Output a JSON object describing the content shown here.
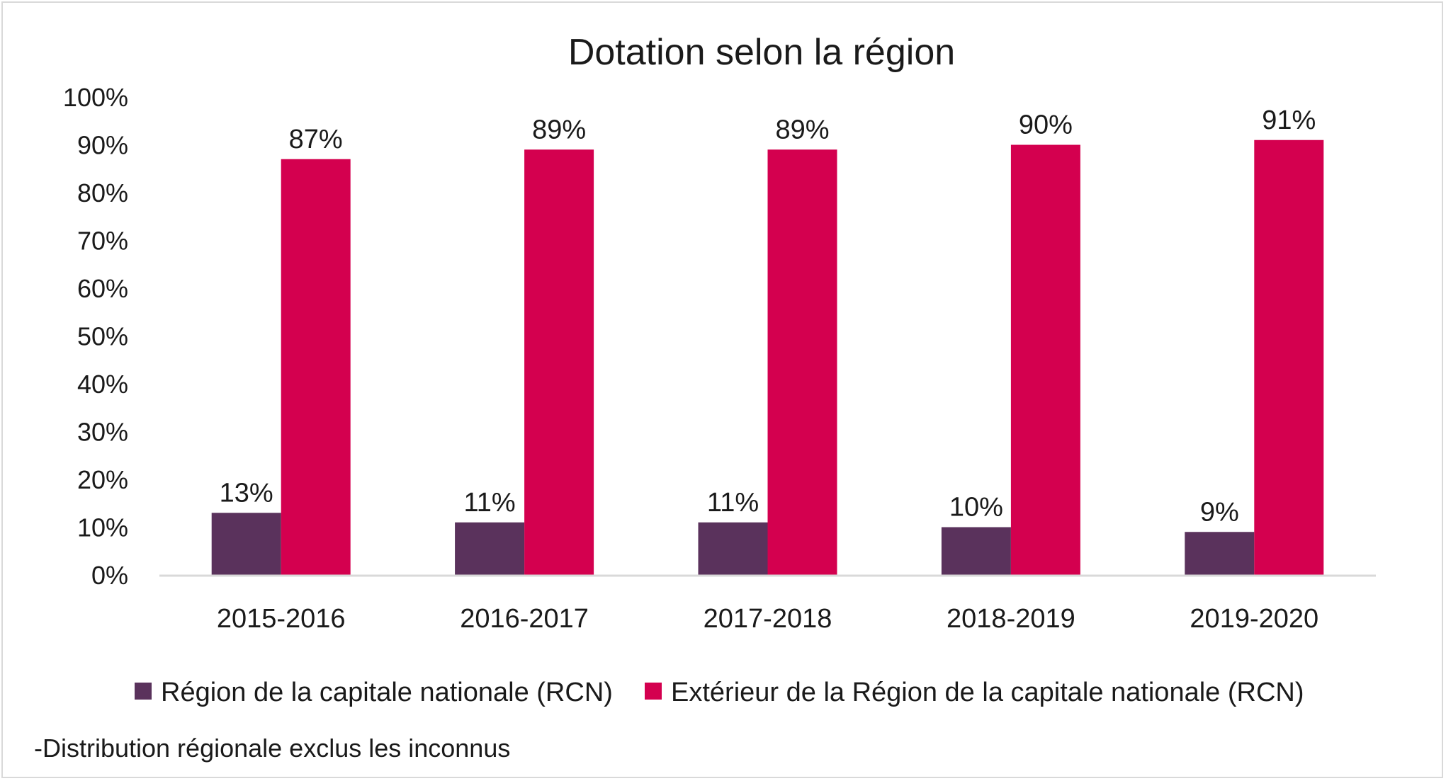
{
  "chart_data": {
    "type": "bar",
    "title": "Dotation selon la région",
    "categories": [
      "2015-2016",
      "2016-2017",
      "2017-2018",
      "2018-2019",
      "2019-2020"
    ],
    "series": [
      {
        "name": "Région de la capitale nationale (RCN)",
        "color": "#5a325c",
        "values": [
          13,
          11,
          11,
          10,
          9
        ],
        "labels": [
          "13%",
          "11%",
          "11%",
          "10%",
          "9%"
        ]
      },
      {
        "name": "Extérieur de la Région de la capitale nationale (RCN)",
        "color": "#d4004f",
        "values": [
          87,
          89,
          89,
          90,
          91
        ],
        "labels": [
          "87%",
          "89%",
          "89%",
          "90%",
          "91%"
        ]
      }
    ],
    "ylim": [
      0,
      100
    ],
    "yticks": [
      "0%",
      "10%",
      "20%",
      "30%",
      "40%",
      "50%",
      "60%",
      "70%",
      "80%",
      "90%",
      "100%"
    ],
    "grid": false,
    "legend": "bottom",
    "footnote": "-Distribution régionale exclus les inconnus"
  },
  "colors": {
    "axis": "#d9d9d9",
    "border": "#d9d9d9",
    "text": "#1a1a1a"
  }
}
